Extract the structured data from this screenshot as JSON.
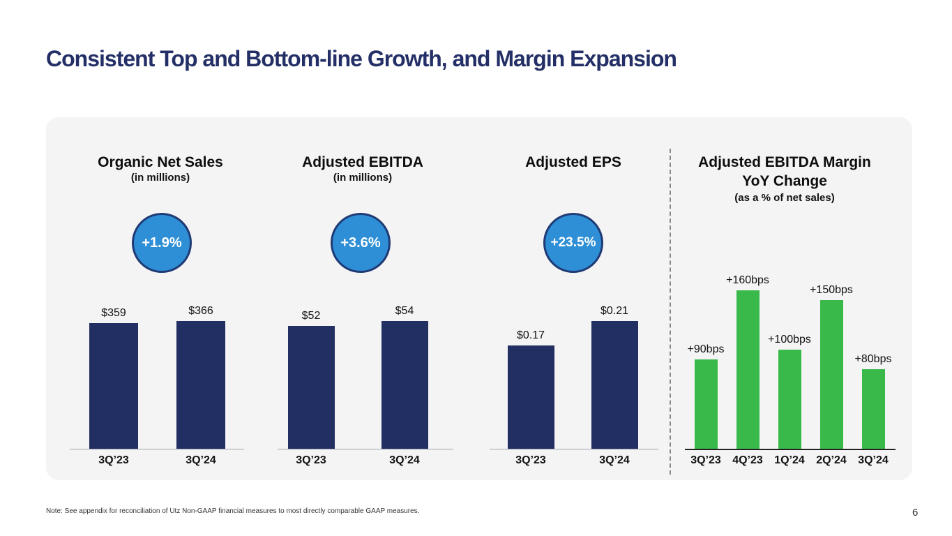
{
  "page_title": "Consistent Top and Bottom-line Growth, and Margin Expansion",
  "footnote": "Note: See appendix for reconciliation of Utz Non-GAAP financial measures to most directly comparable GAAP measures.",
  "page_number": "6",
  "colors": {
    "navy_bar": "#222f62",
    "green_bar": "#39b94a",
    "badge_fill": "#2e8fd6",
    "title": "#232f66"
  },
  "chart_data": [
    {
      "type": "bar",
      "title": "Organic Net Sales",
      "subtitle": "(in millions)",
      "badge": "+1.9%",
      "categories": [
        "3Q'23",
        "3Q'24"
      ],
      "values": [
        359,
        366
      ],
      "labels": [
        "$359",
        "$366"
      ],
      "ylim": [
        0,
        400
      ]
    },
    {
      "type": "bar",
      "title": "Adjusted EBITDA",
      "subtitle": "(in millions)",
      "badge": "+3.6%",
      "categories": [
        "3Q'23",
        "3Q'24"
      ],
      "values": [
        52,
        54
      ],
      "labels": [
        "$52",
        "$54"
      ],
      "ylim": [
        0,
        59
      ]
    },
    {
      "type": "bar",
      "title": "Adjusted EPS",
      "subtitle": "",
      "badge": "+23.5%",
      "categories": [
        "3Q'23",
        "3Q'24"
      ],
      "values": [
        0.17,
        0.21
      ],
      "labels": [
        "$0.17",
        "$0.21"
      ],
      "ylim": [
        0,
        0.23
      ]
    },
    {
      "type": "bar",
      "title": "Adjusted EBITDA Margin YoY Change",
      "title_line1": "Adjusted EBITDA Margin",
      "title_line2": "YoY Change",
      "subtitle": "(as a % of net sales)",
      "categories": [
        "3Q'23",
        "4Q'23",
        "1Q'24",
        "2Q'24",
        "3Q'24"
      ],
      "values": [
        90,
        160,
        100,
        150,
        80
      ],
      "labels": [
        "+90bps",
        "+160bps",
        "+100bps",
        "+150bps",
        "+80bps"
      ],
      "ylim": [
        0,
        160
      ]
    }
  ]
}
